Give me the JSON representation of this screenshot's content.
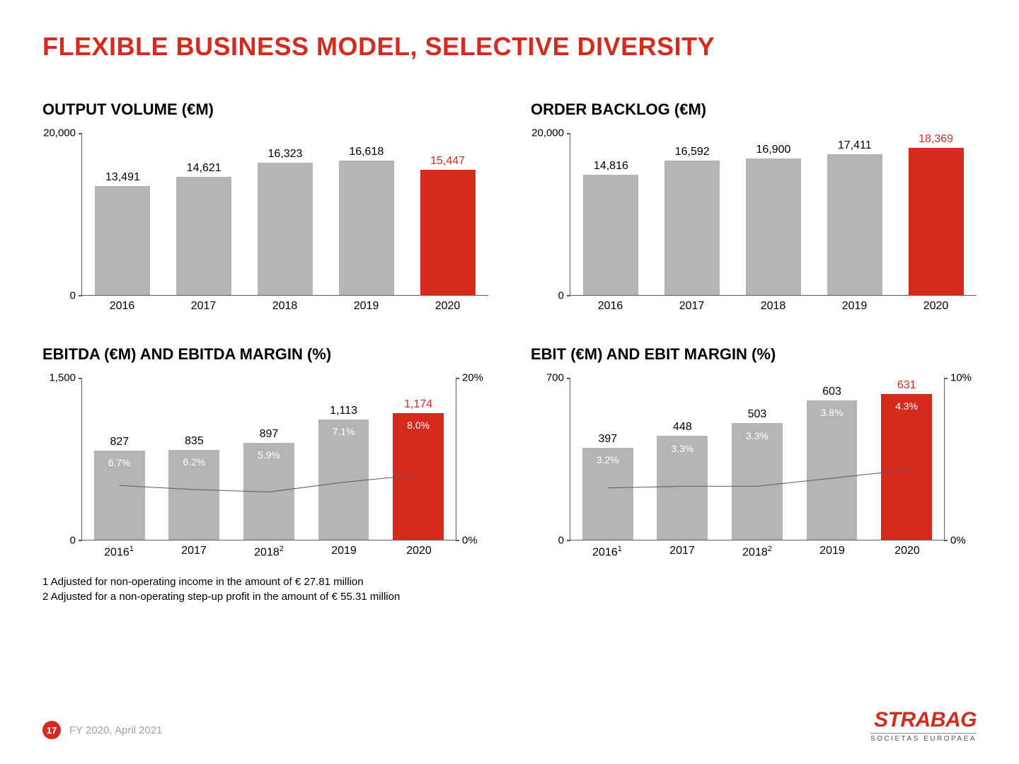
{
  "title": "FLEXIBLE BUSINESS MODEL, SELECTIVE DIVERSITY",
  "colors": {
    "accent": "#d52b1e",
    "bar_default": "#b4b4b4",
    "line": "#5b5b5b",
    "axis": "#5b5b5b",
    "text": "#000000",
    "pct_text": "#ffffff"
  },
  "charts": {
    "output": {
      "title": "OUTPUT VOLUME (€M)",
      "type": "bar",
      "ymax": 20000,
      "yticks": [
        {
          "v": 0,
          "label": "0"
        },
        {
          "v": 20000,
          "label": "20,000"
        }
      ],
      "cats": [
        "2016",
        "2017",
        "2018",
        "2019",
        "2020"
      ],
      "vals": [
        13491,
        14621,
        16323,
        16618,
        15447
      ],
      "labels": [
        "13,491",
        "14,621",
        "16,323",
        "16,618",
        "15,447"
      ],
      "highlight_idx": 4
    },
    "backlog": {
      "title": "ORDER BACKLOG (€M)",
      "type": "bar",
      "ymax": 20000,
      "yticks": [
        {
          "v": 0,
          "label": "0"
        },
        {
          "v": 20000,
          "label": "20,000"
        }
      ],
      "cats": [
        "2016",
        "2017",
        "2018",
        "2019",
        "2020"
      ],
      "vals": [
        14816,
        16592,
        16900,
        17411,
        18369
      ],
      "labels": [
        "14,816",
        "16,592",
        "16,900",
        "17,411",
        "18,369"
      ],
      "highlight_idx": 4
    },
    "ebitda": {
      "title": "EBITDA (€M) AND EBITDA MARGIN (%)",
      "type": "bar-line",
      "ymax": 1500,
      "yticks": [
        {
          "v": 0,
          "label": "0"
        },
        {
          "v": 1500,
          "label": "1,500"
        }
      ],
      "ymax2": 20,
      "yticks2": [
        {
          "v": 0,
          "label": "0%"
        },
        {
          "v": 20,
          "label": "20%"
        }
      ],
      "cats": [
        "2016",
        "2017",
        "2018",
        "2019",
        "2020"
      ],
      "cats_html": [
        "2016<sup>1</sup>",
        "2017",
        "2018<sup>2</sup>",
        "2019",
        "2020"
      ],
      "vals": [
        827,
        835,
        897,
        1113,
        1174
      ],
      "labels": [
        "827",
        "835",
        "897",
        "1,113",
        "1,174"
      ],
      "pct": [
        6.7,
        6.2,
        5.9,
        7.1,
        8.0
      ],
      "pct_labels": [
        "6.7%",
        "6.2%",
        "5.9%",
        "7.1%",
        "8.0%"
      ],
      "highlight_idx": 4
    },
    "ebit": {
      "title": "EBIT (€M) AND EBIT MARGIN (%)",
      "type": "bar-line",
      "ymax": 700,
      "yticks": [
        {
          "v": 0,
          "label": "0"
        },
        {
          "v": 700,
          "label": "700"
        }
      ],
      "ymax2": 10,
      "yticks2": [
        {
          "v": 0,
          "label": "0%"
        },
        {
          "v": 10,
          "label": "10%"
        }
      ],
      "cats": [
        "2016",
        "2017",
        "2018",
        "2019",
        "2020"
      ],
      "cats_html": [
        "2016<sup>1</sup>",
        "2017",
        "2018<sup>2</sup>",
        "2019",
        "2020"
      ],
      "vals": [
        397,
        448,
        503,
        603,
        631
      ],
      "labels": [
        "397",
        "448",
        "503",
        "603",
        "631"
      ],
      "pct": [
        3.2,
        3.3,
        3.3,
        3.8,
        4.3
      ],
      "pct_labels": [
        "3.2%",
        "3.3%",
        "3.3%",
        "3.8%",
        "4.3%"
      ],
      "highlight_idx": 4
    }
  },
  "footnotes": [
    "1 Adjusted for non-operating income in the amount of € 27.81 million",
    "2 Adjusted for a non-operating step-up profit in the amount of € 55.31 million"
  ],
  "footer": {
    "page": "17",
    "text": "FY 2020, April 2021"
  },
  "logo": {
    "main": "STRABAG",
    "sub": "SOCIETAS EUROPAEA"
  }
}
